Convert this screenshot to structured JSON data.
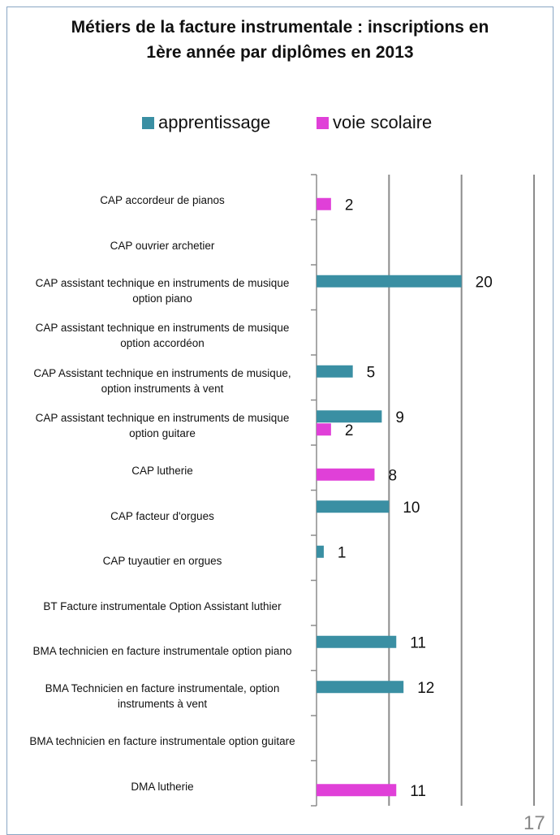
{
  "chart_data": {
    "type": "barh",
    "title": "Métiers de la facture instrumentale : inscriptions en 1ère  année par diplômes en 2013",
    "categories": [
      "CAP accordeur de pianos",
      "CAP ouvrier archetier",
      "CAP assistant technique en instruments de musique option piano",
      "CAP assistant technique en instruments de musique option accordéon",
      "CAP Assistant technique en instruments de musique, option instruments à vent",
      "CAP assistant technique en instruments de musique option guitare",
      "CAP lutherie",
      "CAP facteur d'orgues",
      "CAP tuyautier en orgues",
      "BT Facture instrumentale Option Assistant luthier",
      "BMA technicien en facture instrumentale option piano",
      "BMA Technicien en facture instrumentale, option instruments à vent",
      "BMA technicien en facture instrumentale option guitare",
      "DMA lutherie"
    ],
    "series": [
      {
        "name": "apprentissage",
        "color": "#3a8fa3",
        "values": [
          null,
          null,
          20,
          null,
          5,
          9,
          null,
          10,
          1,
          null,
          11,
          12,
          null,
          null
        ]
      },
      {
        "name": "voie scolaire",
        "color": "#e040d8",
        "values": [
          2,
          null,
          null,
          null,
          null,
          2,
          8,
          null,
          null,
          null,
          null,
          null,
          null,
          11
        ]
      }
    ],
    "xlim": [
      0,
      30
    ],
    "xticks": [
      0,
      10,
      20,
      30
    ],
    "grid": true,
    "legend": "top",
    "page_number": "17"
  }
}
